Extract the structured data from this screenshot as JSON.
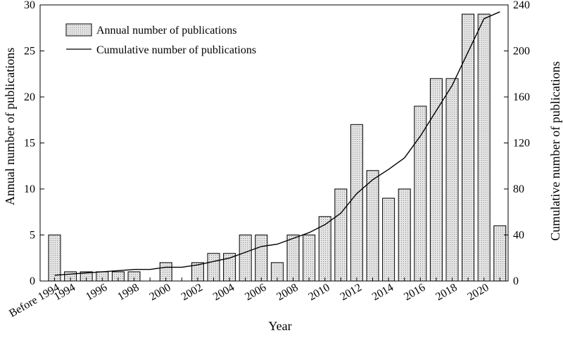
{
  "chart_data": {
    "type": "bar",
    "categories": [
      "Before 1994",
      "1994",
      "1995",
      "1996",
      "1997",
      "1998",
      "1999",
      "2000",
      "2001",
      "2002",
      "2003",
      "2004",
      "2005",
      "2006",
      "2007",
      "2008",
      "2009",
      "2010",
      "2011",
      "2012",
      "2013",
      "2014",
      "2015",
      "2016",
      "2017",
      "2018",
      "2019",
      "2020",
      "2021"
    ],
    "tick_labels": [
      "Before 1994",
      "1994",
      "1996",
      "1998",
      "2000",
      "2002",
      "2004",
      "2006",
      "2008",
      "2010",
      "2012",
      "2014",
      "2016",
      "2018",
      "2020"
    ],
    "series": [
      {
        "name": "Annual number of publications",
        "type": "bar",
        "axis": "left",
        "values": [
          5,
          1,
          1,
          1,
          1,
          1,
          0,
          2,
          0,
          2,
          3,
          3,
          5,
          5,
          2,
          5,
          5,
          7,
          10,
          17,
          12,
          9,
          10,
          19,
          22,
          22,
          29,
          29,
          6
        ]
      },
      {
        "name": "Cumulative number of publications",
        "type": "line",
        "axis": "right",
        "values": [
          5,
          6,
          7,
          8,
          9,
          10,
          10,
          12,
          12,
          14,
          17,
          20,
          25,
          30,
          32,
          37,
          42,
          49,
          59,
          76,
          88,
          97,
          107,
          126,
          148,
          170,
          199,
          228,
          234
        ]
      }
    ],
    "xlabel": "Year",
    "ylabel_left": "Annual number of publications",
    "ylabel_right": "Cumulative number of publications",
    "ylim_left": [
      0,
      30
    ],
    "ylim_right": [
      0,
      240
    ],
    "yticks_left": [
      0,
      5,
      10,
      15,
      20,
      25,
      30
    ],
    "yticks_right": [
      0,
      40,
      80,
      120,
      160,
      200,
      240
    ],
    "grid": false,
    "legend_position": "top-left",
    "bar_fill": "#e2e2e2",
    "bar_dot": "#9a9a9a",
    "line_color": "#000000"
  }
}
